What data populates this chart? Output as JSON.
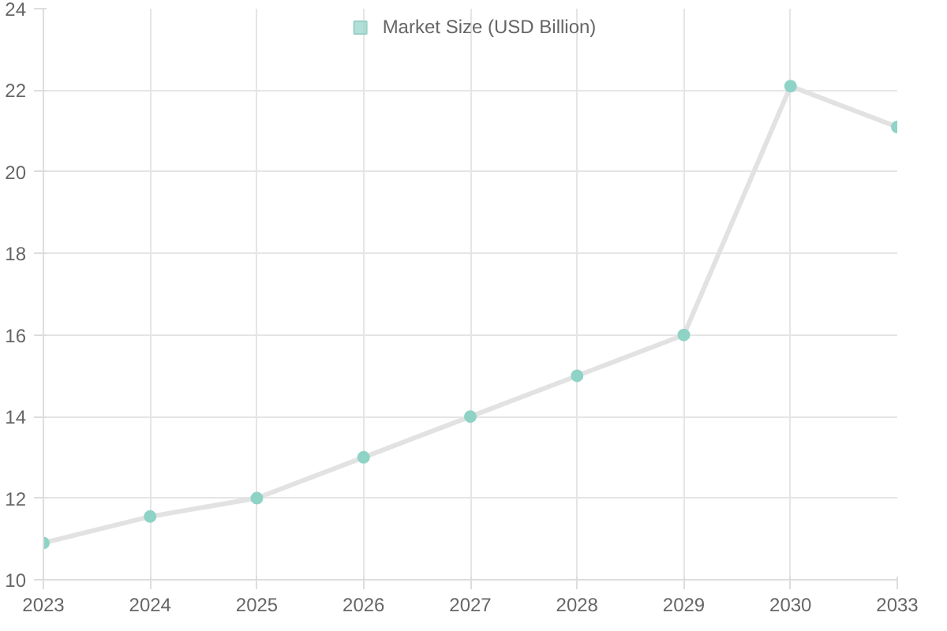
{
  "chart_data": {
    "type": "line",
    "categories": [
      "2023",
      "2024",
      "2025",
      "2026",
      "2027",
      "2028",
      "2029",
      "2030",
      "2033"
    ],
    "series": [
      {
        "name": "Market Size (USD Billion)",
        "color": "#8fd3c6",
        "values": [
          10.9,
          11.55,
          12,
          13,
          14,
          15,
          16,
          22.1,
          21.1
        ]
      }
    ],
    "ylim": [
      10,
      24
    ],
    "yticks": [
      10,
      12,
      14,
      16,
      18,
      20,
      22,
      24
    ],
    "grid": true,
    "legend": "top",
    "marker": "circle",
    "line_style": "solid"
  }
}
